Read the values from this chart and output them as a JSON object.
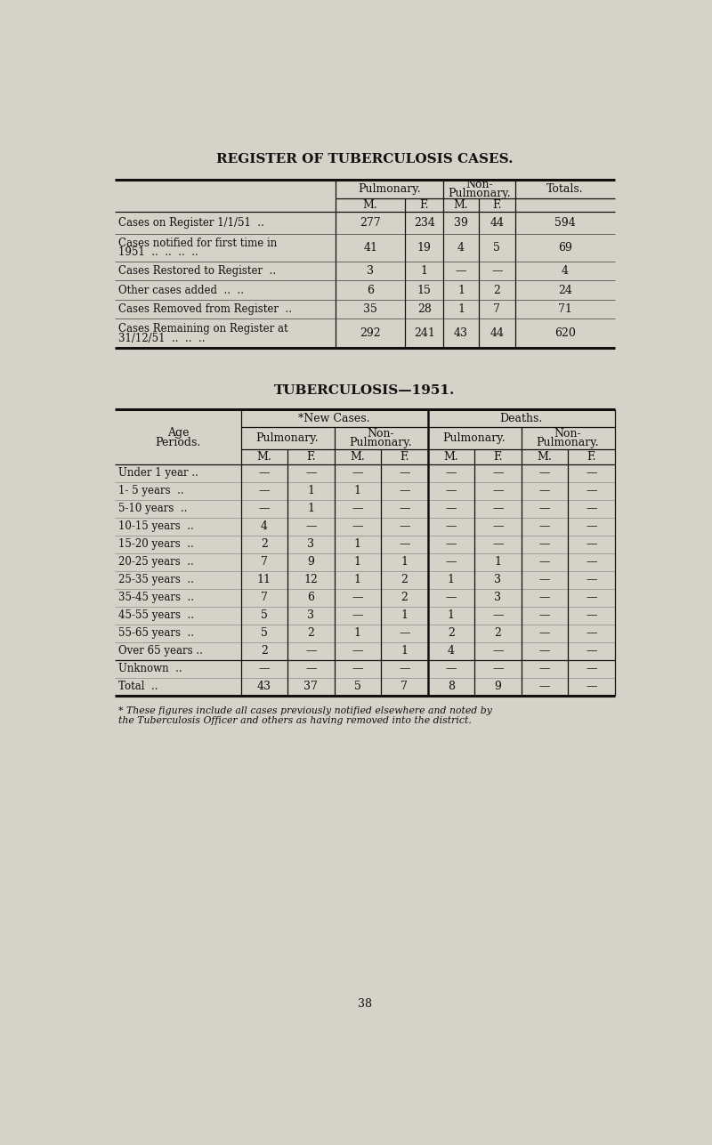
{
  "bg_color": "#d6d2c8",
  "title1": "REGISTER OF TUBERCULOSIS CASES.",
  "title2": "TUBERCULOSIS—1951.",
  "table1_rows": [
    [
      "Cases on Register 1/1/51  ..",
      "277",
      "234",
      "39",
      "44",
      "594"
    ],
    [
      "Cases notified for first time in\n1951  ..  ..  ..  ..",
      "41",
      "19",
      "4",
      "5",
      "69"
    ],
    [
      "Cases Restored to Register  ..",
      "3",
      "1",
      "—",
      "—",
      "4"
    ],
    [
      "Other cases added  ..  ..",
      "6",
      "15",
      "1",
      "2",
      "24"
    ],
    [
      "Cases Removed from Register  ..",
      "35",
      "28",
      "1",
      "7",
      "71"
    ],
    [
      "Cases Remaining on Register at\n31/12/51  ..  ..  ..",
      "292",
      "241",
      "43",
      "44",
      "620"
    ]
  ],
  "table2_ages": [
    "Under 1 year ..",
    "1- 5 years  ..",
    "5-10 years  ..",
    "10-15 years  ..",
    "15-20 years  ..",
    "20-25 years  ..",
    "25-35 years  ..",
    "35-45 years  ..",
    "45-55 years  ..",
    "55-65 years  ..",
    "Over 65 years ..",
    "Unknown  ..",
    "Total  .."
  ],
  "table2_data": [
    [
      "—",
      "—",
      "—",
      "—",
      "—",
      "—",
      "—",
      "—"
    ],
    [
      "—",
      "1",
      "1",
      "—",
      "—",
      "—",
      "—",
      "—"
    ],
    [
      "—",
      "1",
      "—",
      "—",
      "—",
      "—",
      "—",
      "—"
    ],
    [
      "4",
      "—",
      "—",
      "—",
      "—",
      "—",
      "—",
      "—"
    ],
    [
      "2",
      "3",
      "1",
      "—",
      "—",
      "—",
      "—",
      "—"
    ],
    [
      "7",
      "9",
      "1",
      "1",
      "—",
      "1",
      "—",
      "—"
    ],
    [
      "11",
      "12",
      "1",
      "2",
      "1",
      "3",
      "—",
      "—"
    ],
    [
      "7",
      "6",
      "—",
      "2",
      "—",
      "3",
      "—",
      "—"
    ],
    [
      "5",
      "3",
      "—",
      "1",
      "1",
      "—",
      "—",
      "—"
    ],
    [
      "5",
      "2",
      "1",
      "—",
      "2",
      "2",
      "—",
      "—"
    ],
    [
      "2",
      "—",
      "—",
      "1",
      "4",
      "—",
      "—",
      "—"
    ],
    [
      "—",
      "—",
      "—",
      "—",
      "—",
      "—",
      "—",
      "—"
    ],
    [
      "43",
      "37",
      "5",
      "7",
      "8",
      "9",
      "—",
      "—"
    ]
  ],
  "footnote_line1": "* These figures include all cases previously notified elsewhere and noted by",
  "footnote_line2": "the Tuberculosis Officer and others as having removed into the district.",
  "page_number": "38"
}
